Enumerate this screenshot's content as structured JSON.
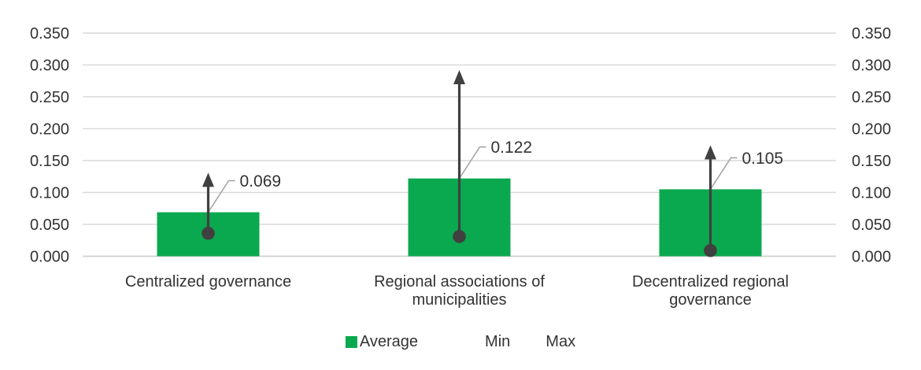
{
  "chart_data": {
    "type": "bar",
    "title": "",
    "xlabel": "",
    "ylabel": "",
    "categories": [
      "Centralized governance",
      "Regional associations of municipalities",
      "Decentralized regional governance"
    ],
    "category_lines": [
      [
        "Centralized governance"
      ],
      [
        "Regional associations of",
        "municipalities"
      ],
      [
        "Decentralized regional",
        "governance"
      ]
    ],
    "series": [
      {
        "name": "Average",
        "role": "bar",
        "values": [
          0.069,
          0.122,
          0.105
        ],
        "data_labels": [
          "0.069",
          "0.122",
          "0.105"
        ]
      },
      {
        "name": "Min",
        "role": "dot-marker",
        "values": [
          0.036,
          0.031,
          0.009
        ]
      },
      {
        "name": "Max",
        "role": "arrow-tip",
        "values": [
          0.131,
          0.292,
          0.174
        ]
      }
    ],
    "ylim": [
      0,
      0.35
    ],
    "y_tick_step": 0.05,
    "y_ticks": [
      "0.000",
      "0.050",
      "0.100",
      "0.150",
      "0.200",
      "0.250",
      "0.300",
      "0.350"
    ],
    "y_axis_sides": [
      "left",
      "right"
    ],
    "grid": true,
    "legend": {
      "position": "bottom",
      "items": [
        {
          "label": "Average",
          "swatch": "square"
        },
        {
          "label": "Min"
        },
        {
          "label": "Max"
        }
      ]
    },
    "colors": {
      "bar": "#0BA94F",
      "marker": "#404040",
      "leader_line": "#A6A6A6",
      "gridline": "#D9D9D9",
      "baseline": "#CFCFCF",
      "text": "#333333"
    }
  }
}
